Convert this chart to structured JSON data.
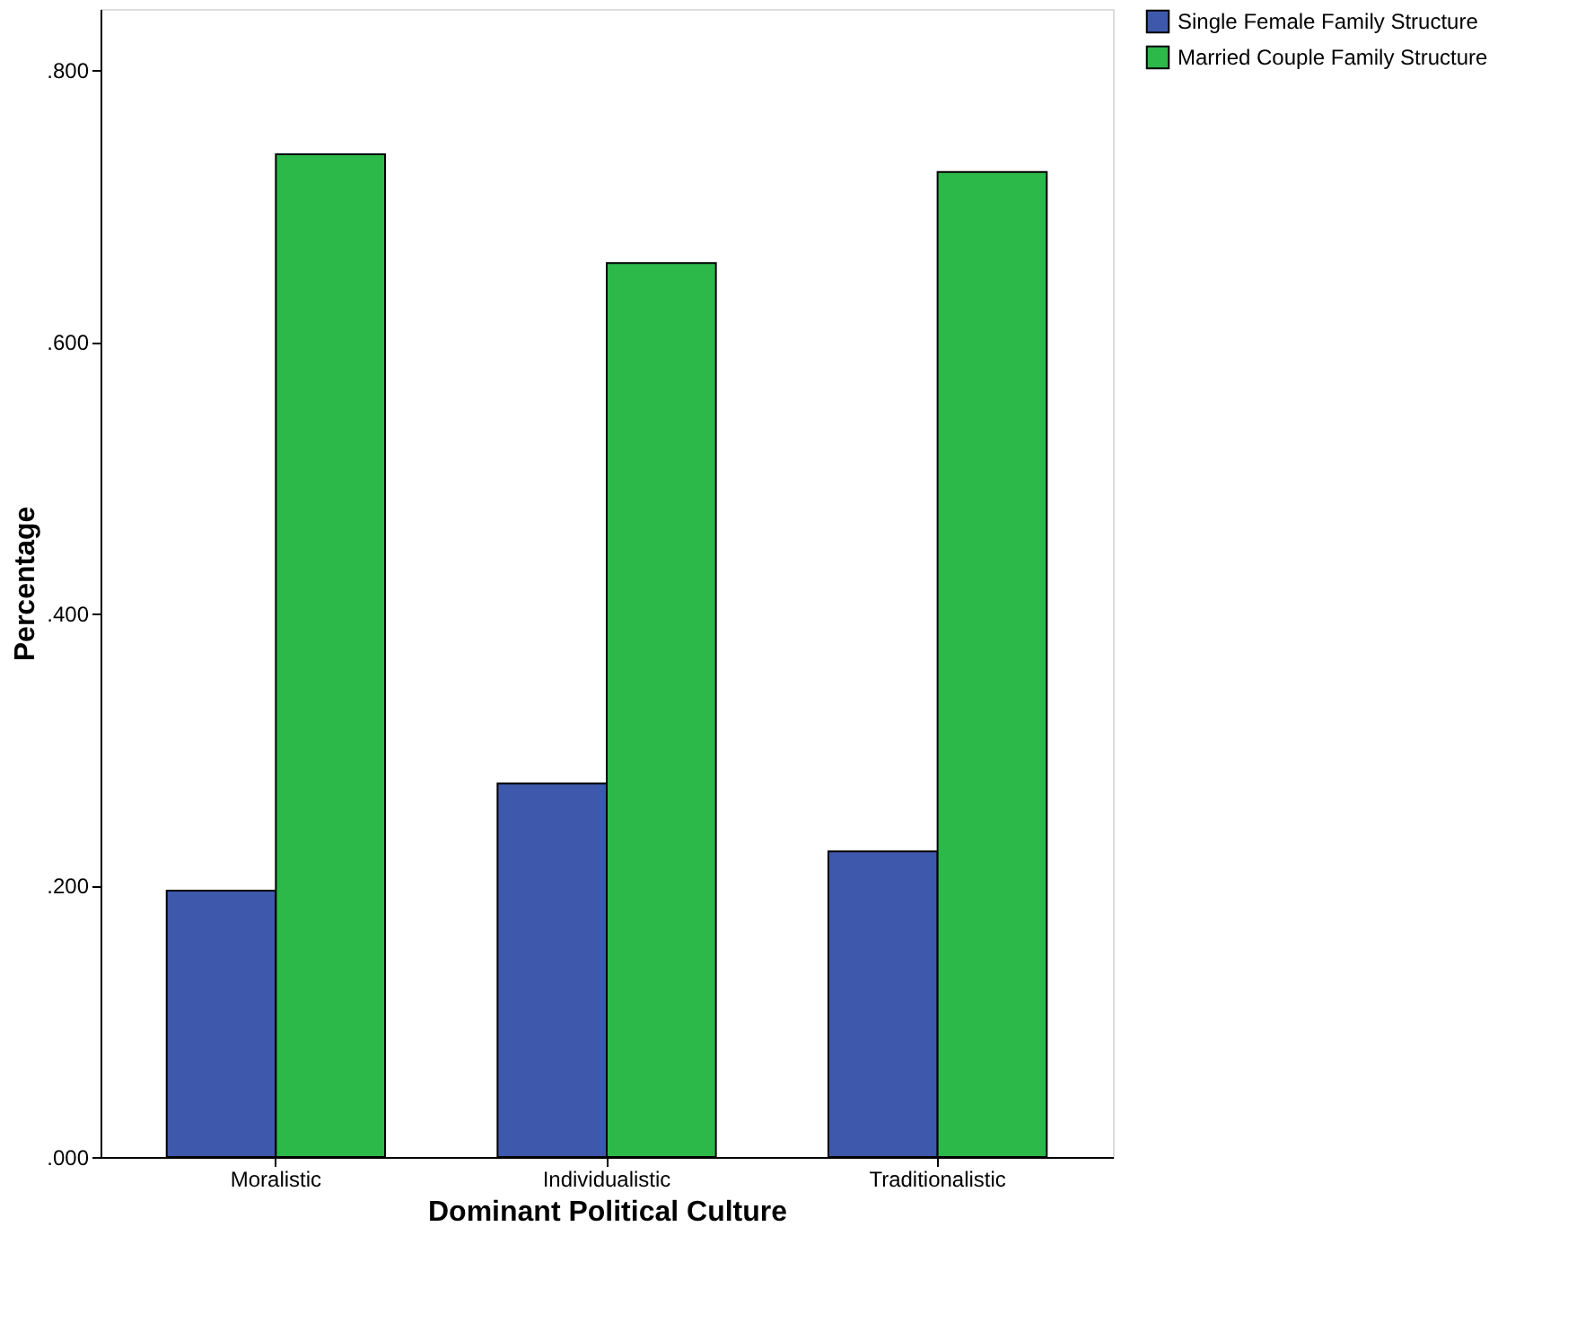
{
  "chart_data": {
    "type": "bar",
    "xlabel": "Dominant Political Culture",
    "ylabel": "Percentage",
    "categories": [
      "Moralistic",
      "Individualistic",
      "Traditionalistic"
    ],
    "series": [
      {
        "name": "Single Female Family Structure",
        "color": "#3e58ac",
        "values": [
          0.196,
          0.275,
          0.225
        ]
      },
      {
        "name": "Married Couple Family Structure",
        "color": "#2db84a",
        "values": [
          0.738,
          0.658,
          0.725
        ]
      }
    ],
    "ylim": [
      0,
      0.845
    ],
    "yticks": [
      {
        "value": 0,
        "label": ".000"
      },
      {
        "value": 0.2,
        "label": ".200"
      },
      {
        "value": 0.4,
        "label": ".400"
      },
      {
        "value": 0.6,
        "label": ".600"
      },
      {
        "value": 0.8,
        "label": ".800"
      }
    ],
    "grid": false,
    "legend": "top right"
  }
}
